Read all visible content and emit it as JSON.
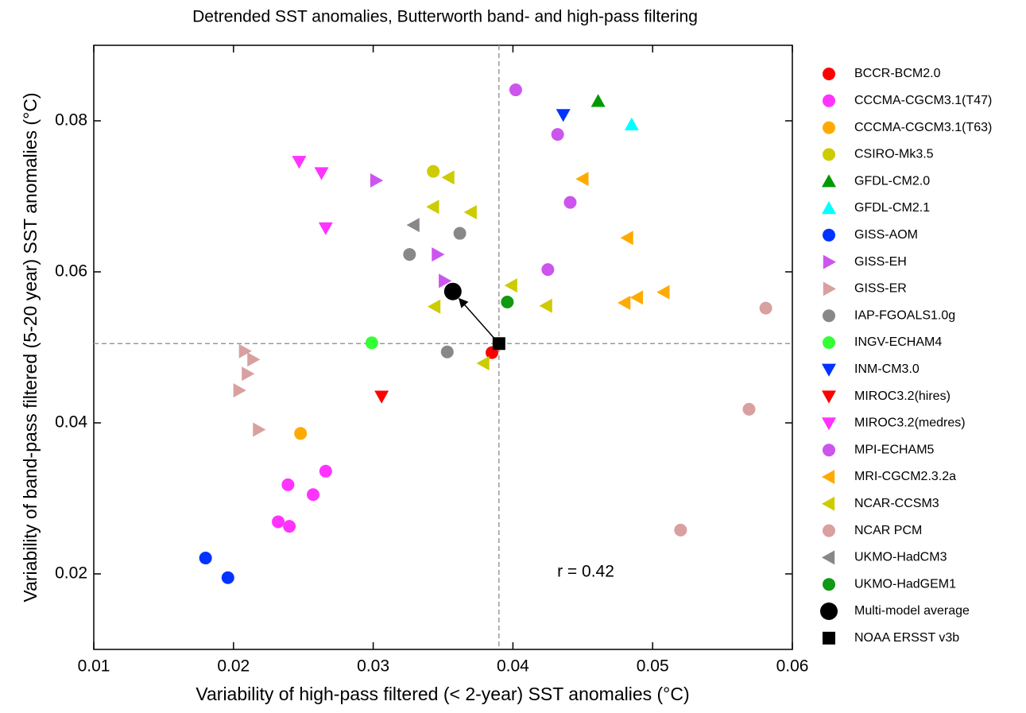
{
  "chart_data": {
    "type": "scatter",
    "title": "Detrended SST anomalies, Butterworth band- and high-pass filtering",
    "x_label": "Variability of high-pass filtered (< 2-year) SST anomalies (°C)",
    "y_label": "Variability of band-pass filtered (5-20 year) SST anomalies (°C)",
    "annotation": "r = 0.42",
    "xlim": [
      0.01,
      0.06
    ],
    "ylim": [
      0.01,
      0.09
    ],
    "xticks": [
      0.01,
      0.02,
      0.03,
      0.04,
      0.05,
      0.06
    ],
    "yticks": [
      0.02,
      0.04,
      0.06,
      0.08
    ],
    "grid": false,
    "legend": "outside-right",
    "series": [
      {
        "name": "BCCR-BCM2.0",
        "color": "#ff0000",
        "marker": "circle",
        "x": [
          0.0385
        ],
        "values": [
          0.0493
        ]
      },
      {
        "name": "CCCMA-CGCM3.1(T47)",
        "color": "#ff33ff",
        "marker": "circle",
        "x": [
          0.0239,
          0.0257,
          0.0266,
          0.0232,
          0.024
        ],
        "values": [
          0.0318,
          0.0305,
          0.0336,
          0.0269,
          0.0263
        ]
      },
      {
        "name": "CCCMA-CGCM3.1(T63)",
        "color": "#ffaa00",
        "marker": "circle",
        "x": [
          0.0248
        ],
        "values": [
          0.0386
        ]
      },
      {
        "name": "CSIRO-Mk3.5",
        "color": "#cccc00",
        "marker": "circle",
        "x": [
          0.0343
        ],
        "values": [
          0.0733
        ]
      },
      {
        "name": "GFDL-CM2.0",
        "color": "#009900",
        "marker": "triangle-up",
        "x": [
          0.0461
        ],
        "values": [
          0.0826
        ]
      },
      {
        "name": "GFDL-CM2.1",
        "color": "#00ffff",
        "marker": "triangle-up",
        "x": [
          0.0485
        ],
        "values": [
          0.0795
        ]
      },
      {
        "name": "GISS-AOM",
        "color": "#0033ff",
        "marker": "circle",
        "x": [
          0.018,
          0.0196
        ],
        "values": [
          0.0221,
          0.0195
        ]
      },
      {
        "name": "GISS-EH",
        "color": "#cc55ee",
        "marker": "triangle-right",
        "x": [
          0.0302,
          0.0346,
          0.0351
        ],
        "values": [
          0.0721,
          0.0623,
          0.0588
        ]
      },
      {
        "name": "GISS-ER",
        "color": "#d9a0a0",
        "marker": "triangle-right",
        "x": [
          0.0208,
          0.0214,
          0.021,
          0.0204,
          0.0218
        ],
        "values": [
          0.0495,
          0.0484,
          0.0465,
          0.0443,
          0.0391
        ]
      },
      {
        "name": "IAP-FGOALS1.0g",
        "color": "#888888",
        "marker": "circle",
        "x": [
          0.0326,
          0.0362,
          0.0353
        ],
        "values": [
          0.0623,
          0.0651,
          0.0494
        ]
      },
      {
        "name": "INGV-ECHAM4",
        "color": "#33ff33",
        "marker": "circle",
        "x": [
          0.0299
        ],
        "values": [
          0.0506
        ]
      },
      {
        "name": "INM-CM3.0",
        "color": "#0033ff",
        "marker": "triangle-down",
        "x": [
          0.0436
        ],
        "values": [
          0.0808
        ]
      },
      {
        "name": "MIROC3.2(hires)",
        "color": "#ff0000",
        "marker": "triangle-down",
        "x": [
          0.0306
        ],
        "values": [
          0.0435
        ]
      },
      {
        "name": "MIROC3.2(medres)",
        "color": "#ff33ff",
        "marker": "triangle-down",
        "x": [
          0.0247,
          0.0263,
          0.0266
        ],
        "values": [
          0.0746,
          0.0731,
          0.0658
        ]
      },
      {
        "name": "MPI-ECHAM5",
        "color": "#cc55ee",
        "marker": "circle",
        "x": [
          0.0402,
          0.0432,
          0.0441,
          0.0425
        ],
        "values": [
          0.0841,
          0.0782,
          0.0692,
          0.0603
        ]
      },
      {
        "name": "MRI-CGCM2.3.2a",
        "color": "#ffaa00",
        "marker": "triangle-left",
        "x": [
          0.045,
          0.0482,
          0.048,
          0.0489,
          0.0508
        ],
        "values": [
          0.0723,
          0.0645,
          0.0559,
          0.0566,
          0.0573
        ]
      },
      {
        "name": "NCAR-CCSM3",
        "color": "#cccc00",
        "marker": "triangle-left",
        "x": [
          0.0354,
          0.0343,
          0.037,
          0.0399,
          0.0344,
          0.0424,
          0.0379
        ],
        "values": [
          0.0725,
          0.0686,
          0.0679,
          0.0582,
          0.0554,
          0.0555,
          0.0479
        ]
      },
      {
        "name": "NCAR PCM",
        "color": "#d9a0a0",
        "marker": "circle",
        "x": [
          0.0581,
          0.0569,
          0.052
        ],
        "values": [
          0.0552,
          0.0418,
          0.0258
        ]
      },
      {
        "name": "UKMO-HadCM3",
        "color": "#888888",
        "marker": "triangle-left",
        "x": [
          0.0329
        ],
        "values": [
          0.0662
        ]
      },
      {
        "name": "UKMO-HadGEM1",
        "color": "#119911",
        "marker": "circle",
        "x": [
          0.0396
        ],
        "values": [
          0.056
        ]
      },
      {
        "name": "Multi-model average",
        "color": "#000000",
        "marker": "big-circle",
        "x": [
          0.0357
        ],
        "values": [
          0.0574
        ]
      },
      {
        "name": "NOAA ERSST v3b",
        "color": "#000000",
        "marker": "square",
        "x": [
          0.039
        ],
        "values": [
          0.0505
        ]
      }
    ]
  }
}
